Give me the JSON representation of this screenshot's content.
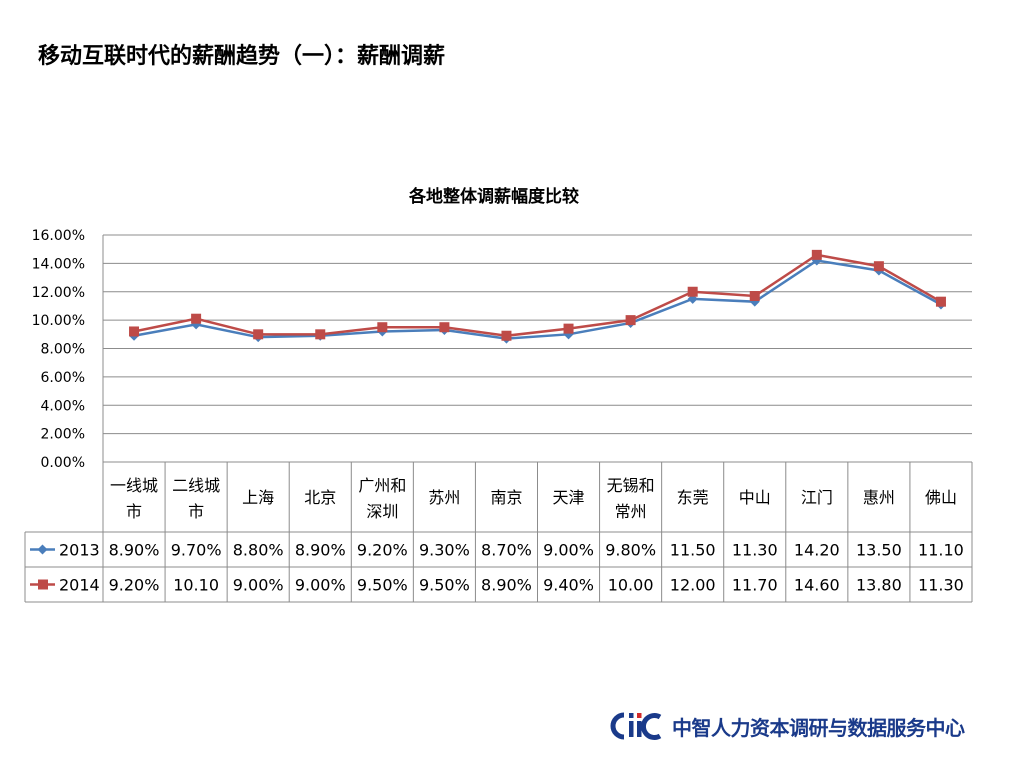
{
  "slide": {
    "title": "移动互联时代的薪酬趋势（一）：薪酬调薪",
    "brand_logo_text": "CIIC",
    "brand_text": "中智人力资本调研与数据服务中心"
  },
  "chart_data": {
    "type": "line",
    "title": "各地整体调薪幅度比较",
    "categories": [
      "一线城市",
      "二线城市",
      "上海",
      "北京",
      "广州和深圳",
      "苏州",
      "南京",
      "天津",
      "无锡和常州",
      "东莞",
      "中山",
      "江门",
      "惠州",
      "佛山"
    ],
    "category_lines": [
      [
        "一线城",
        "市"
      ],
      [
        "二线城",
        "市"
      ],
      [
        "上海"
      ],
      [
        "北京"
      ],
      [
        "广州和",
        "深圳"
      ],
      [
        "苏州"
      ],
      [
        "南京"
      ],
      [
        "天津"
      ],
      [
        "无锡和",
        "常州"
      ],
      [
        "东莞"
      ],
      [
        "中山"
      ],
      [
        "江门"
      ],
      [
        "惠州"
      ],
      [
        "佛山"
      ]
    ],
    "series": [
      {
        "name": "2013",
        "color": "#4a7ebb",
        "marker": "diamond",
        "values": [
          8.9,
          9.7,
          8.8,
          8.9,
          9.2,
          9.3,
          8.7,
          9.0,
          9.8,
          11.5,
          11.3,
          14.2,
          13.5,
          11.1
        ],
        "labels": [
          "8.90%",
          "9.70%",
          "8.80%",
          "8.90%",
          "9.20%",
          "9.30%",
          "8.70%",
          "9.00%",
          "9.80%",
          "11.50",
          "11.30",
          "14.20",
          "13.50",
          "11.10"
        ]
      },
      {
        "name": "2014",
        "color": "#be4b48",
        "marker": "square",
        "values": [
          9.2,
          10.1,
          9.0,
          9.0,
          9.5,
          9.5,
          8.9,
          9.4,
          10.0,
          12.0,
          11.7,
          14.6,
          13.8,
          11.3
        ],
        "labels": [
          "9.20%",
          "10.10",
          "9.00%",
          "9.00%",
          "9.50%",
          "9.50%",
          "8.90%",
          "9.40%",
          "10.00",
          "12.00",
          "11.70",
          "14.60",
          "13.80",
          "11.30"
        ]
      }
    ],
    "ylim": [
      0,
      16
    ],
    "yticks": [
      0,
      2,
      4,
      6,
      8,
      10,
      12,
      14,
      16
    ],
    "ytick_labels": [
      "0.00%",
      "2.00%",
      "4.00%",
      "6.00%",
      "8.00%",
      "10.00%",
      "12.00%",
      "14.00%",
      "16.00%"
    ],
    "grid": true,
    "legend": "data-table"
  }
}
